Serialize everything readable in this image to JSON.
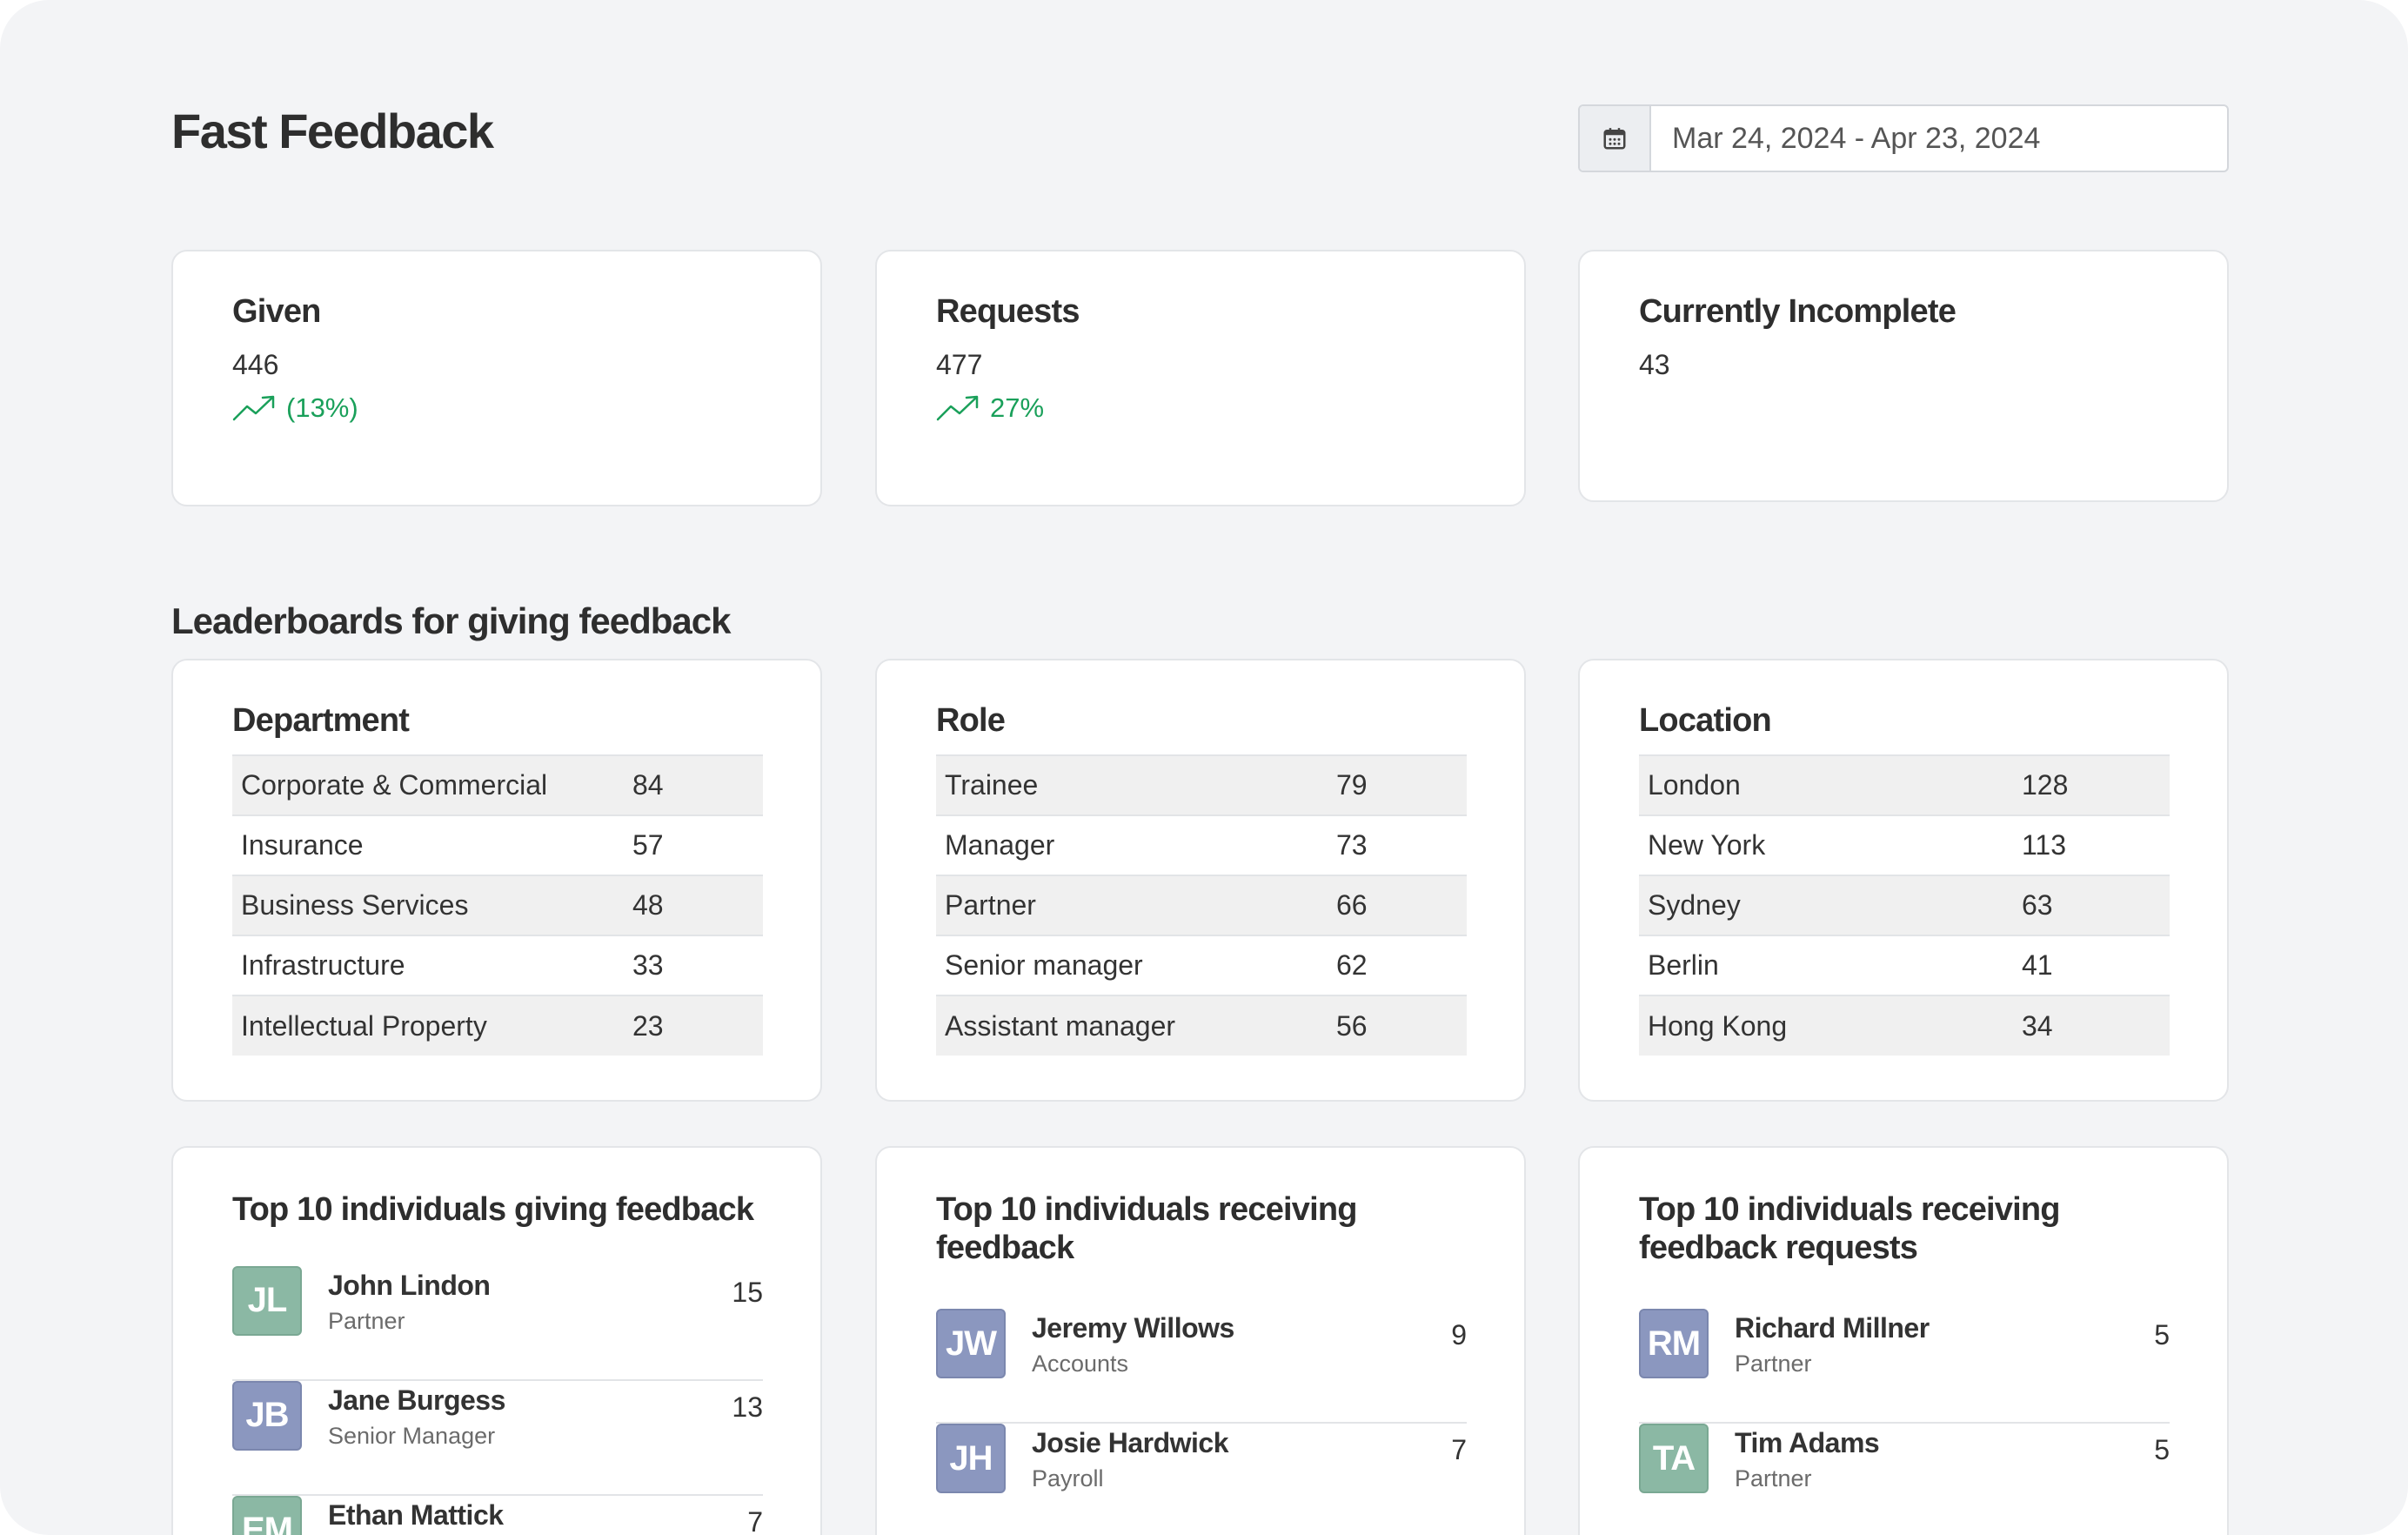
{
  "header": {
    "title": "Fast Feedback",
    "date_range": "Mar 24, 2024 - Apr 23, 2024",
    "calendar_icon": "calendar-icon"
  },
  "stats": [
    {
      "title": "Given",
      "value": "446",
      "trend": "(13%)",
      "trend_icon": "trending-up-icon"
    },
    {
      "title": "Requests",
      "value": "477",
      "trend": "27%",
      "trend_icon": "trending-up-icon"
    },
    {
      "title": "Currently Incomplete",
      "value": "43"
    }
  ],
  "colors": {
    "trend_up": "#1aa05a",
    "avatar_green": "#8bb8a4",
    "avatar_blue": "#8b97bf",
    "page_bg": "#f3f4f6"
  },
  "leaderboards": {
    "title": "Leaderboards for giving feedback",
    "department": {
      "title": "Department",
      "rows": [
        {
          "name": "Corporate & Commercial",
          "count": "84"
        },
        {
          "name": "Insurance",
          "count": "57"
        },
        {
          "name": "Business Services",
          "count": "48"
        },
        {
          "name": "Infrastructure",
          "count": "33"
        },
        {
          "name": "Intellectual Property",
          "count": "23"
        }
      ]
    },
    "role": {
      "title": "Role",
      "rows": [
        {
          "name": "Trainee",
          "count": "79"
        },
        {
          "name": "Manager",
          "count": "73"
        },
        {
          "name": "Partner",
          "count": "66"
        },
        {
          "name": "Senior manager",
          "count": "62"
        },
        {
          "name": "Assistant manager",
          "count": "56"
        }
      ]
    },
    "location": {
      "title": "Location",
      "rows": [
        {
          "name": "London",
          "count": "128"
        },
        {
          "name": "New York",
          "count": "113"
        },
        {
          "name": "Sydney",
          "count": "63"
        },
        {
          "name": "Berlin",
          "count": "41"
        },
        {
          "name": "Hong Kong",
          "count": "34"
        }
      ]
    }
  },
  "top_giving": {
    "title": "Top 10 individuals giving feedback",
    "people": [
      {
        "initials": "JL",
        "name": "John Lindon",
        "role": "Partner",
        "count": "15",
        "color": "green"
      },
      {
        "initials": "JB",
        "name": "Jane Burgess",
        "role": "Senior Manager",
        "count": "13",
        "color": "blue"
      },
      {
        "initials": "EM",
        "name": "Ethan Mattick",
        "role": "",
        "count": "7",
        "color": "green"
      }
    ]
  },
  "top_receiving": {
    "title": "Top 10 individuals receiving feedback",
    "people": [
      {
        "initials": "JW",
        "name": "Jeremy Willows",
        "role": "Accounts",
        "count": "9",
        "color": "blue"
      },
      {
        "initials": "JH",
        "name": "Josie Hardwick",
        "role": "Payroll",
        "count": "7",
        "color": "blue"
      }
    ]
  },
  "top_requests": {
    "title": "Top 10 individuals receiving feedback requests",
    "people": [
      {
        "initials": "RM",
        "name": "Richard Millner",
        "role": "Partner",
        "count": "5",
        "color": "blue"
      },
      {
        "initials": "TA",
        "name": "Tim Adams",
        "role": "Partner",
        "count": "5",
        "color": "green"
      }
    ]
  }
}
